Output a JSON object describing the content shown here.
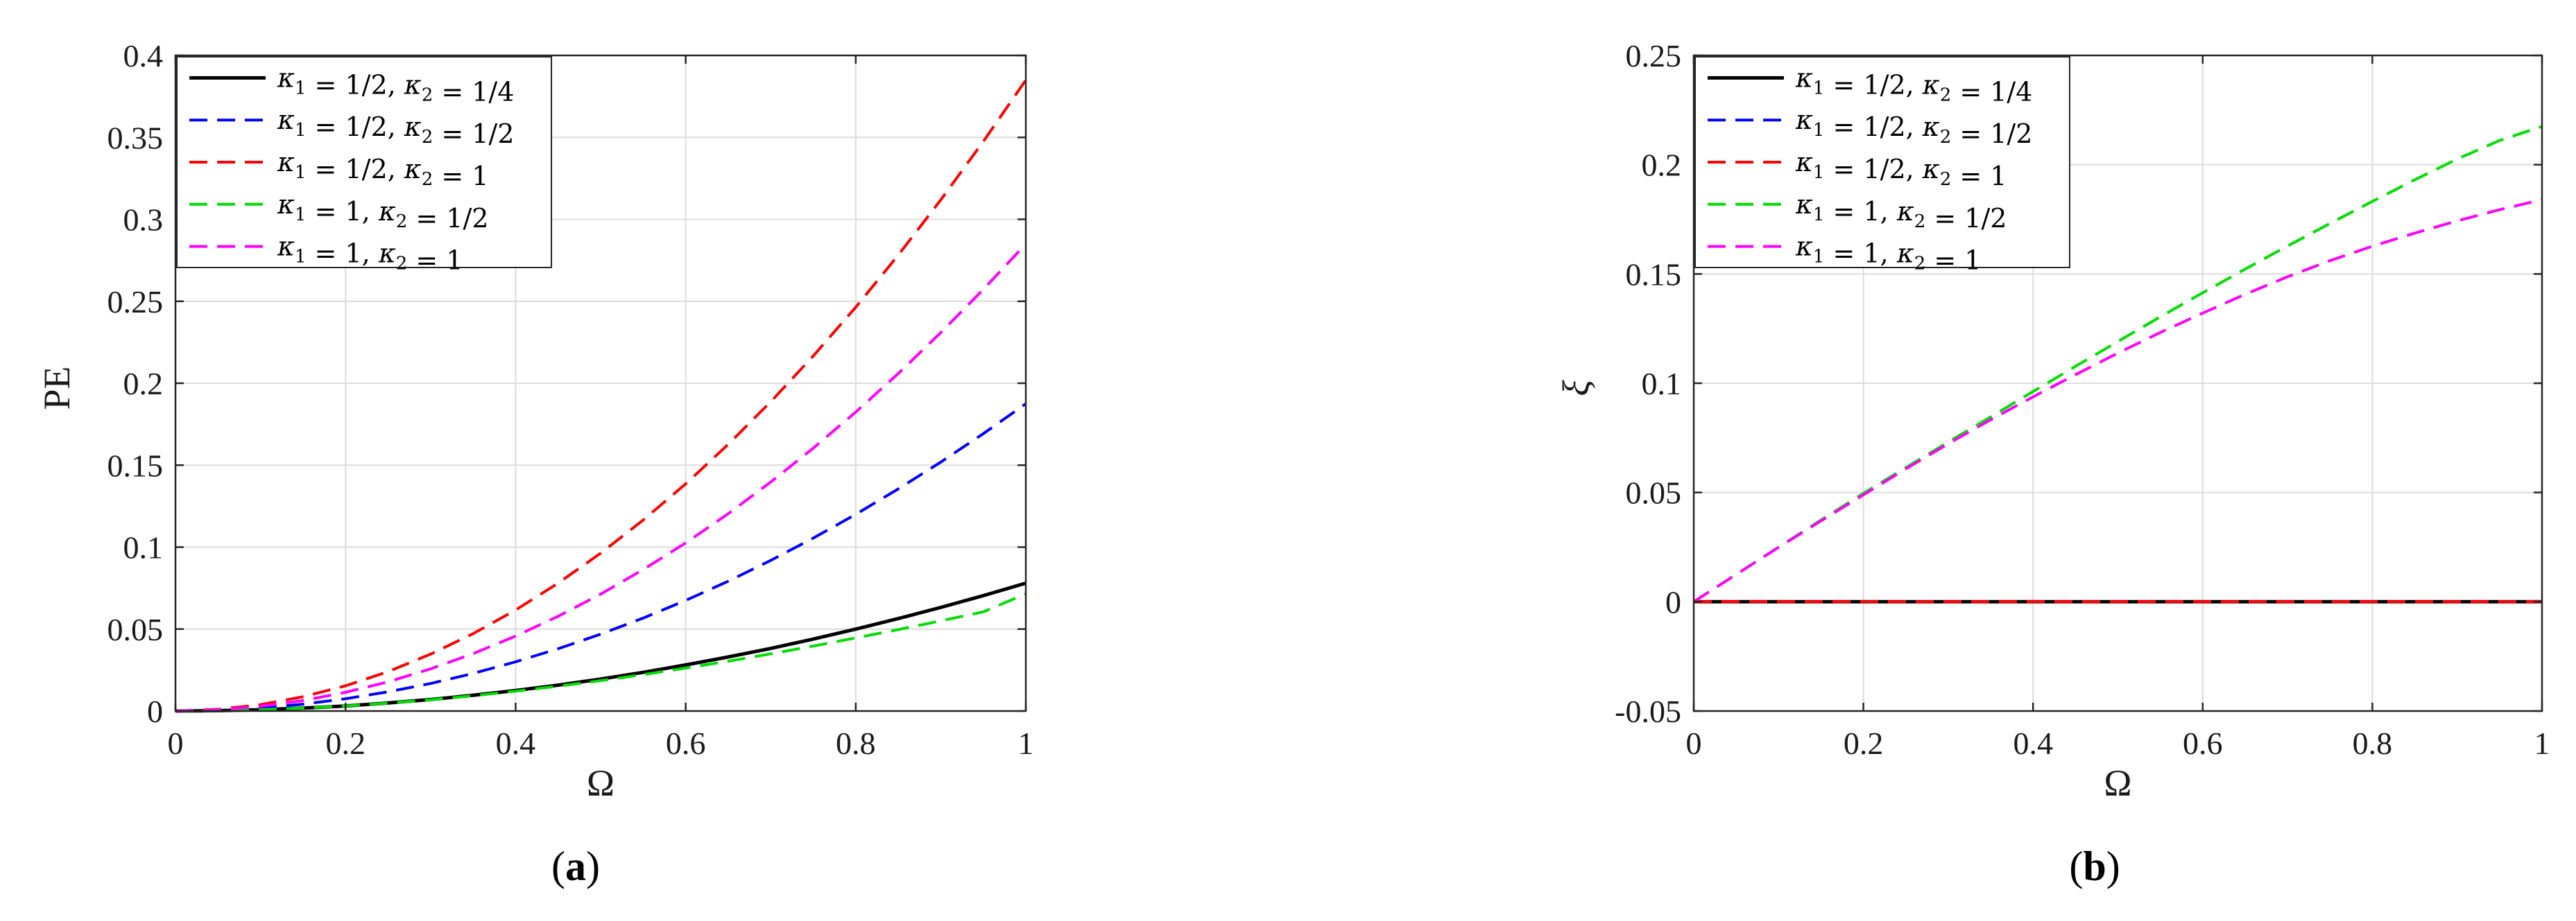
{
  "chart_data": [
    {
      "type": "line",
      "panel_label": "(a)",
      "panel_open": "(",
      "panel_letter": "a",
      "panel_close": ")",
      "xlabel": "Ω",
      "ylabel": "PE",
      "xlim": [
        0,
        1
      ],
      "ylim": [
        0,
        0.4
      ],
      "xticks": [
        0,
        0.2,
        0.4,
        0.6,
        0.8,
        1
      ],
      "xtick_labels": [
        "0",
        "0.2",
        "0.4",
        "0.6",
        "0.8",
        "1"
      ],
      "yticks": [
        0,
        0.05,
        0.1,
        0.15,
        0.2,
        0.25,
        0.3,
        0.35,
        0.4
      ],
      "ytick_labels": [
        "0",
        "0.05",
        "0.1",
        "0.15",
        "0.2",
        "0.25",
        "0.3",
        "0.35",
        "0.4"
      ],
      "grid": true,
      "legend_position": "top-left",
      "x": [
        0,
        0.05,
        0.1,
        0.15,
        0.2,
        0.25,
        0.3,
        0.35,
        0.4,
        0.45,
        0.5,
        0.55,
        0.6,
        0.65,
        0.7,
        0.75,
        0.8,
        0.85,
        0.9,
        0.95,
        1
      ],
      "series": [
        {
          "name": "κ1 = 1/2, κ2 = 1/4",
          "color": "#000000",
          "dash": "solid",
          "values": [
            0,
            0.0002,
            0.0008,
            0.0018,
            0.0031,
            0.0049,
            0.007,
            0.0096,
            0.0125,
            0.0158,
            0.0195,
            0.0236,
            0.0281,
            0.033,
            0.0382,
            0.0439,
            0.05,
            0.0564,
            0.0632,
            0.0704,
            0.078
          ]
        },
        {
          "name": "κ1 = 1/2, κ2 = 1/2",
          "color": "#0000ff",
          "dash": "dashed",
          "values": [
            0,
            0.0005,
            0.0019,
            0.0042,
            0.0075,
            0.0117,
            0.0168,
            0.0229,
            0.03,
            0.038,
            0.0469,
            0.0567,
            0.0675,
            0.0792,
            0.0919,
            0.1055,
            0.12,
            0.1355,
            0.1519,
            0.1692,
            0.1875
          ]
        },
        {
          "name": "κ1 = 1/2, κ2 = 1",
          "color": "#ff0000",
          "dash": "dashed",
          "values": [
            0,
            0.001,
            0.0039,
            0.0087,
            0.0154,
            0.024,
            0.0347,
            0.0472,
            0.0616,
            0.078,
            0.0963,
            0.1165,
            0.1386,
            0.1627,
            0.1887,
            0.2166,
            0.2464,
            0.2782,
            0.3119,
            0.3475,
            0.385
          ]
        },
        {
          "name": "κ1 = 1, κ2 = 1/2",
          "color": "#00dd00",
          "dash": "dashed",
          "values": [
            0,
            0.0002,
            0.0008,
            0.0018,
            0.0031,
            0.0048,
            0.0069,
            0.0093,
            0.0121,
            0.0152,
            0.0185,
            0.0222,
            0.0262,
            0.0304,
            0.0349,
            0.0396,
            0.0446,
            0.0497,
            0.055,
            0.0605,
            0.0715
          ]
        },
        {
          "name": "κ1 = 1, κ2 = 1",
          "color": "#ff00ff",
          "dash": "dashed",
          "values": [
            0,
            0.0007,
            0.0029,
            0.0064,
            0.0114,
            0.0178,
            0.0257,
            0.035,
            0.0457,
            0.0578,
            0.0713,
            0.0863,
            0.1026,
            0.1204,
            0.1397,
            0.1604,
            0.1824,
            0.2059,
            0.2309,
            0.2572,
            0.285
          ]
        }
      ]
    },
    {
      "type": "line",
      "panel_label": "(b)",
      "panel_open": "(",
      "panel_letter": "b",
      "panel_close": ")",
      "xlabel": "Ω",
      "ylabel": "ξ",
      "xlim": [
        0,
        1
      ],
      "ylim": [
        -0.05,
        0.25
      ],
      "xticks": [
        0,
        0.2,
        0.4,
        0.6,
        0.8,
        1
      ],
      "xtick_labels": [
        "0",
        "0.2",
        "0.4",
        "0.6",
        "0.8",
        "1"
      ],
      "yticks": [
        -0.05,
        0,
        0.05,
        0.1,
        0.15,
        0.2,
        0.25
      ],
      "ytick_labels": [
        "-0.05",
        "0",
        "0.05",
        "0.1",
        "0.15",
        "0.2",
        "0.25"
      ],
      "grid": true,
      "legend_position": "top-left",
      "x": [
        0,
        0.05,
        0.1,
        0.15,
        0.2,
        0.25,
        0.3,
        0.35,
        0.4,
        0.45,
        0.5,
        0.55,
        0.6,
        0.65,
        0.7,
        0.75,
        0.8,
        0.85,
        0.9,
        0.95,
        1
      ],
      "series": [
        {
          "name": "κ1 = 1/2, κ2 = 1/4",
          "color": "#000000",
          "dash": "solid",
          "values": [
            0,
            0,
            0,
            0,
            0,
            0,
            0,
            0,
            0,
            0,
            0,
            0,
            0,
            0,
            0,
            0,
            0,
            0,
            0,
            0,
            0
          ]
        },
        {
          "name": "κ1 = 1/2, κ2 = 1/2",
          "color": "#0000ff",
          "dash": "dashed",
          "values": [
            0,
            0,
            0,
            0,
            0,
            0,
            0,
            0,
            0,
            0,
            0,
            0,
            0,
            0,
            0,
            0,
            0,
            0,
            0,
            0,
            0
          ]
        },
        {
          "name": "κ1 = 1/2, κ2 = 1",
          "color": "#ff0000",
          "dash": "dashed",
          "values": [
            0,
            0,
            0,
            0,
            0,
            0,
            0,
            0,
            0,
            0,
            0,
            0,
            0,
            0,
            0,
            0,
            0,
            0,
            0,
            0,
            0
          ]
        },
        {
          "name": "κ1 = 1, κ2 = 1/2",
          "color": "#00dd00",
          "dash": "dashed",
          "values": [
            0,
            0.0125,
            0.025,
            0.0374,
            0.0496,
            0.0614,
            0.0731,
            0.0846,
            0.0962,
            0.1077,
            0.1191,
            0.1304,
            0.1414,
            0.1522,
            0.1628,
            0.1731,
            0.1832,
            0.1931,
            0.2026,
            0.2111,
            0.2175
          ]
        },
        {
          "name": "κ1 = 1, κ2 = 1",
          "color": "#ff00ff",
          "dash": "dashed",
          "values": [
            0,
            0.0125,
            0.0249,
            0.037,
            0.0489,
            0.0608,
            0.0723,
            0.0833,
            0.0938,
            0.1039,
            0.1138,
            0.1232,
            0.1321,
            0.1407,
            0.1487,
            0.1561,
            0.1627,
            0.1687,
            0.1743,
            0.1794,
            0.184
          ]
        }
      ]
    }
  ]
}
